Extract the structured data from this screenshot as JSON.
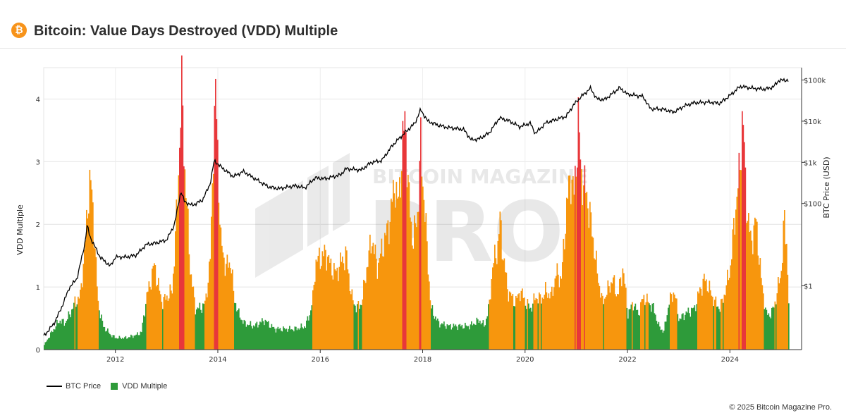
{
  "header": {
    "logo_glyph": "₿",
    "title": "Bitcoin: Value Days Destroyed (VDD) Multiple"
  },
  "watermark": {
    "line1": "BITCOIN MAGAZINE",
    "line2": "PRO"
  },
  "legend": {
    "price_label": "BTC Price",
    "vdd_label": "VDD Multiple"
  },
  "footer": {
    "copyright": "© 2025 Bitcoin Magazine Pro."
  },
  "colors": {
    "green": "#2e9b3a",
    "orange": "#f7960d",
    "red": "#e8373a",
    "price_line": "#000000",
    "logo": "#f7931a"
  },
  "chart_data": {
    "type": "area",
    "title": "Bitcoin: Value Days Destroyed (VDD) Multiple",
    "ylabel_left": "VDD Multiple",
    "ylabel_right": "BTC Price (USD)",
    "x_ticks": [
      "2012",
      "2014",
      "2016",
      "2018",
      "2020",
      "2022",
      "2024"
    ],
    "y_left_ticks": [
      "0",
      "1",
      "2",
      "3",
      "4"
    ],
    "y_right_ticks": [
      "$1",
      "$100",
      "$1k",
      "$10k",
      "$100k"
    ],
    "ylim_left": [
      0,
      4.5
    ],
    "ylim_right_log10": [
      -1.55,
      5.3
    ],
    "xlim": [
      2010.6,
      2025.4
    ],
    "color_thresholds": {
      "orange_above": 0.75,
      "red_above": 2.9
    },
    "grid": true,
    "legend_position": "bottom-left",
    "series": [
      {
        "name": "VDD Multiple",
        "points": [
          [
            2010.6,
            0.08
          ],
          [
            2010.75,
            0.3
          ],
          [
            2010.9,
            0.5
          ],
          [
            2011.0,
            0.45
          ],
          [
            2011.1,
            0.6
          ],
          [
            2011.2,
            0.8
          ],
          [
            2011.3,
            0.9
          ],
          [
            2011.4,
            1.75
          ],
          [
            2011.45,
            2.5
          ],
          [
            2011.5,
            2.9
          ],
          [
            2011.55,
            2.4
          ],
          [
            2011.65,
            0.8
          ],
          [
            2011.75,
            0.4
          ],
          [
            2011.9,
            0.25
          ],
          [
            2012.0,
            0.2
          ],
          [
            2012.2,
            0.2
          ],
          [
            2012.4,
            0.25
          ],
          [
            2012.5,
            0.3
          ],
          [
            2012.55,
            0.6
          ],
          [
            2012.6,
            0.9
          ],
          [
            2012.7,
            1.25
          ],
          [
            2012.75,
            1.45
          ],
          [
            2012.8,
            1.2
          ],
          [
            2012.9,
            0.8
          ],
          [
            2013.0,
            0.9
          ],
          [
            2013.1,
            1.0
          ],
          [
            2013.2,
            2.5
          ],
          [
            2013.28,
            4.45
          ],
          [
            2013.35,
            3.0
          ],
          [
            2013.45,
            1.4
          ],
          [
            2013.55,
            0.7
          ],
          [
            2013.65,
            0.7
          ],
          [
            2013.75,
            0.8
          ],
          [
            2013.85,
            1.6
          ],
          [
            2013.9,
            3.5
          ],
          [
            2013.95,
            4.35
          ],
          [
            2014.0,
            3.0
          ],
          [
            2014.05,
            1.8
          ],
          [
            2014.15,
            1.4
          ],
          [
            2014.25,
            1.5
          ],
          [
            2014.3,
            0.9
          ],
          [
            2014.4,
            0.6
          ],
          [
            2014.5,
            0.45
          ],
          [
            2014.7,
            0.4
          ],
          [
            2014.9,
            0.5
          ],
          [
            2015.1,
            0.35
          ],
          [
            2015.3,
            0.35
          ],
          [
            2015.5,
            0.35
          ],
          [
            2015.7,
            0.4
          ],
          [
            2015.8,
            0.65
          ],
          [
            2015.85,
            0.9
          ],
          [
            2015.9,
            1.5
          ],
          [
            2016.0,
            1.55
          ],
          [
            2016.1,
            1.65
          ],
          [
            2016.2,
            1.4
          ],
          [
            2016.3,
            1.3
          ],
          [
            2016.4,
            1.5
          ],
          [
            2016.5,
            1.6
          ],
          [
            2016.6,
            0.9
          ],
          [
            2016.7,
            0.7
          ],
          [
            2016.8,
            0.8
          ],
          [
            2016.9,
            1.4
          ],
          [
            2017.0,
            1.9
          ],
          [
            2017.1,
            1.4
          ],
          [
            2017.2,
            1.7
          ],
          [
            2017.35,
            2.2
          ],
          [
            2017.45,
            2.9
          ],
          [
            2017.5,
            2.4
          ],
          [
            2017.6,
            3.4
          ],
          [
            2017.65,
            4.1
          ],
          [
            2017.7,
            2.8
          ],
          [
            2017.8,
            1.8
          ],
          [
            2017.9,
            2.4
          ],
          [
            2017.95,
            3.45
          ],
          [
            2018.0,
            2.8
          ],
          [
            2018.1,
            1.4
          ],
          [
            2018.15,
            0.7
          ],
          [
            2018.3,
            0.45
          ],
          [
            2018.5,
            0.4
          ],
          [
            2018.7,
            0.4
          ],
          [
            2018.9,
            0.4
          ],
          [
            2019.0,
            0.45
          ],
          [
            2019.1,
            0.5
          ],
          [
            2019.2,
            0.4
          ],
          [
            2019.3,
            0.8
          ],
          [
            2019.35,
            1.4
          ],
          [
            2019.45,
            1.7
          ],
          [
            2019.5,
            2.2
          ],
          [
            2019.55,
            1.7
          ],
          [
            2019.65,
            1.0
          ],
          [
            2019.8,
            0.8
          ],
          [
            2019.9,
            1.0
          ],
          [
            2020.0,
            0.8
          ],
          [
            2020.1,
            0.7
          ],
          [
            2020.2,
            0.9
          ],
          [
            2020.3,
            0.85
          ],
          [
            2020.4,
            1.0
          ],
          [
            2020.5,
            0.9
          ],
          [
            2020.6,
            1.3
          ],
          [
            2020.7,
            1.2
          ],
          [
            2020.8,
            2.4
          ],
          [
            2020.88,
            3.0
          ],
          [
            2020.95,
            2.6
          ],
          [
            2021.03,
            3.9
          ],
          [
            2021.08,
            3.0
          ],
          [
            2021.2,
            2.6
          ],
          [
            2021.3,
            2.0
          ],
          [
            2021.4,
            1.3
          ],
          [
            2021.5,
            0.8
          ],
          [
            2021.6,
            1.0
          ],
          [
            2021.7,
            1.2
          ],
          [
            2021.8,
            0.9
          ],
          [
            2021.9,
            1.4
          ],
          [
            2022.0,
            0.6
          ],
          [
            2022.1,
            0.8
          ],
          [
            2022.2,
            0.6
          ],
          [
            2022.3,
            0.9
          ],
          [
            2022.4,
            0.8
          ],
          [
            2022.5,
            0.7
          ],
          [
            2022.6,
            0.4
          ],
          [
            2022.7,
            0.3
          ],
          [
            2022.8,
            0.8
          ],
          [
            2022.9,
            1.0
          ],
          [
            2023.0,
            0.5
          ],
          [
            2023.1,
            0.6
          ],
          [
            2023.3,
            0.7
          ],
          [
            2023.4,
            1.0
          ],
          [
            2023.5,
            1.2
          ],
          [
            2023.6,
            1.0
          ],
          [
            2023.7,
            0.8
          ],
          [
            2023.8,
            0.7
          ],
          [
            2023.9,
            1.0
          ],
          [
            2024.0,
            1.4
          ],
          [
            2024.1,
            2.4
          ],
          [
            2024.18,
            3.0
          ],
          [
            2024.24,
            4.1
          ],
          [
            2024.3,
            2.6
          ],
          [
            2024.4,
            1.8
          ],
          [
            2024.5,
            2.2
          ],
          [
            2024.6,
            1.2
          ],
          [
            2024.7,
            0.6
          ],
          [
            2024.8,
            0.6
          ],
          [
            2024.9,
            0.9
          ],
          [
            2025.0,
            1.4
          ],
          [
            2025.05,
            2.2
          ],
          [
            2025.1,
            1.8
          ],
          [
            2025.15,
            0.5
          ]
        ]
      },
      {
        "name": "BTC Price",
        "points": [
          [
            2010.6,
            0.06
          ],
          [
            2010.8,
            0.12
          ],
          [
            2010.95,
            0.3
          ],
          [
            2011.1,
            0.9
          ],
          [
            2011.25,
            1.5
          ],
          [
            2011.4,
            10.0
          ],
          [
            2011.45,
            30.0
          ],
          [
            2011.5,
            16.0
          ],
          [
            2011.7,
            5.0
          ],
          [
            2011.9,
            3.0
          ],
          [
            2012.0,
            5.0
          ],
          [
            2012.2,
            5.0
          ],
          [
            2012.4,
            5.5
          ],
          [
            2012.6,
            10.0
          ],
          [
            2012.8,
            11.0
          ],
          [
            2013.0,
            13.0
          ],
          [
            2013.15,
            30.0
          ],
          [
            2013.28,
            200.0
          ],
          [
            2013.35,
            110.0
          ],
          [
            2013.5,
            90.0
          ],
          [
            2013.7,
            120.0
          ],
          [
            2013.85,
            300.0
          ],
          [
            2013.93,
            1100.0
          ],
          [
            2014.05,
            800.0
          ],
          [
            2014.3,
            450.0
          ],
          [
            2014.5,
            600.0
          ],
          [
            2014.8,
            350.0
          ],
          [
            2015.0,
            250.0
          ],
          [
            2015.2,
            230.0
          ],
          [
            2015.5,
            270.0
          ],
          [
            2015.7,
            240.0
          ],
          [
            2015.9,
            420.0
          ],
          [
            2016.1,
            400.0
          ],
          [
            2016.4,
            500.0
          ],
          [
            2016.5,
            700.0
          ],
          [
            2016.8,
            650.0
          ],
          [
            2017.0,
            1000.0
          ],
          [
            2017.2,
            1100.0
          ],
          [
            2017.4,
            2500.0
          ],
          [
            2017.6,
            4500.0
          ],
          [
            2017.85,
            9000.0
          ],
          [
            2017.96,
            19000.0
          ],
          [
            2018.1,
            10000.0
          ],
          [
            2018.3,
            8000.0
          ],
          [
            2018.5,
            7000.0
          ],
          [
            2018.8,
            6300.0
          ],
          [
            2018.95,
            3500.0
          ],
          [
            2019.1,
            3700.0
          ],
          [
            2019.3,
            5200.0
          ],
          [
            2019.5,
            12000.0
          ],
          [
            2019.7,
            10000.0
          ],
          [
            2019.9,
            7300.0
          ],
          [
            2020.1,
            9000.0
          ],
          [
            2020.2,
            5000.0
          ],
          [
            2020.4,
            9000.0
          ],
          [
            2020.6,
            11000.0
          ],
          [
            2020.8,
            13000.0
          ],
          [
            2020.95,
            25000.0
          ],
          [
            2021.1,
            40000.0
          ],
          [
            2021.28,
            63000.0
          ],
          [
            2021.4,
            35000.0
          ],
          [
            2021.55,
            33000.0
          ],
          [
            2021.85,
            65000.0
          ],
          [
            2022.0,
            45000.0
          ],
          [
            2022.3,
            40000.0
          ],
          [
            2022.45,
            20000.0
          ],
          [
            2022.7,
            19500.0
          ],
          [
            2022.9,
            16500.0
          ],
          [
            2023.1,
            23000.0
          ],
          [
            2023.3,
            28000.0
          ],
          [
            2023.6,
            29000.0
          ],
          [
            2023.8,
            27000.0
          ],
          [
            2024.0,
            42000.0
          ],
          [
            2024.2,
            70000.0
          ],
          [
            2024.5,
            62000.0
          ],
          [
            2024.7,
            60000.0
          ],
          [
            2024.85,
            68000.0
          ],
          [
            2024.95,
            97000.0
          ],
          [
            2025.1,
            100000.0
          ],
          [
            2025.15,
            95000.0
          ]
        ]
      }
    ]
  }
}
